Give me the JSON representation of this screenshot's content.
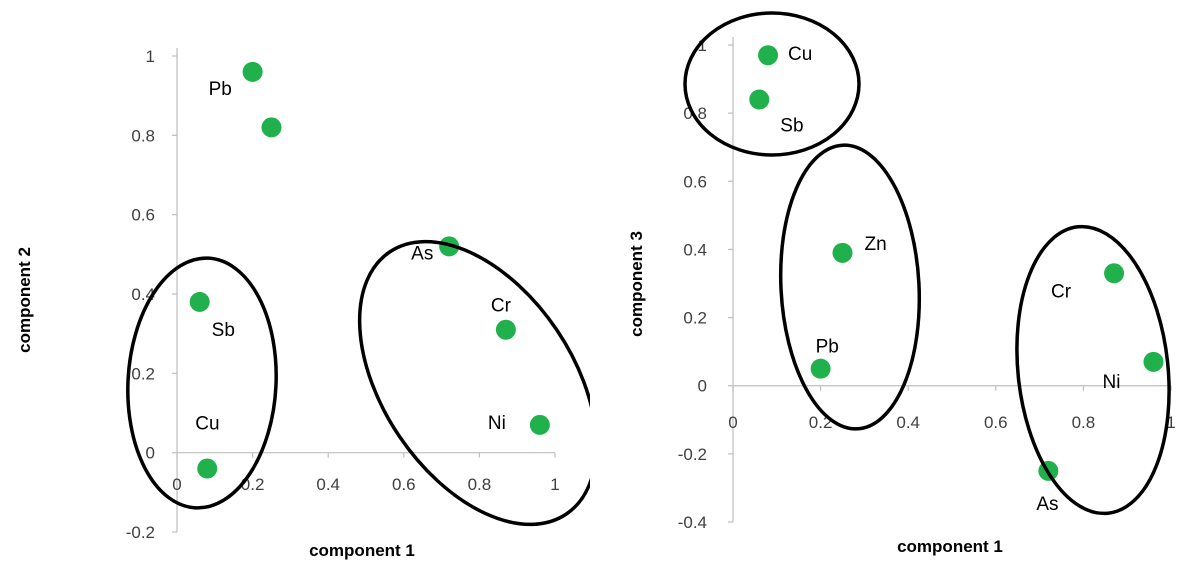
{
  "chart_data": [
    {
      "type": "scatter",
      "xlabel": "component 1",
      "ylabel": "component 2",
      "xlim": [
        0,
        1
      ],
      "ylim": [
        -0.2,
        1
      ],
      "x_ticks": [
        "0",
        "0.2",
        "0.4",
        "0.6",
        "0.8",
        "1"
      ],
      "y_ticks": [
        "-0.2",
        "0",
        "0.2",
        "0.4",
        "0.6",
        "0.8",
        "1"
      ],
      "marker_color": "#21b14c",
      "points": [
        {
          "label": "Pb",
          "x": 0.2,
          "y": 0.96
        },
        {
          "label": "",
          "x": 0.25,
          "y": 0.82
        },
        {
          "label": "As",
          "x": 0.72,
          "y": 0.52
        },
        {
          "label": "Sb",
          "x": 0.06,
          "y": 0.38
        },
        {
          "label": "Cr",
          "x": 0.87,
          "y": 0.31
        },
        {
          "label": "Ni",
          "x": 0.96,
          "y": 0.07
        },
        {
          "label": "Cu",
          "x": 0.08,
          "y": -0.04
        }
      ],
      "clusters": [
        [
          "Sb",
          "Cu"
        ],
        [
          "As",
          "Cr",
          "Ni"
        ]
      ]
    },
    {
      "type": "scatter",
      "xlabel": "component 1",
      "ylabel": "component 3",
      "xlim": [
        0,
        1
      ],
      "ylim": [
        -0.4,
        1
      ],
      "x_ticks": [
        "0",
        "0.2",
        "0.4",
        "0.6",
        "0.8",
        "1"
      ],
      "y_ticks": [
        "-0.4",
        "-0.2",
        "0",
        "0.2",
        "0.4",
        "0.6",
        "0.8",
        "1"
      ],
      "marker_color": "#21b14c",
      "points": [
        {
          "label": "Cu",
          "x": 0.08,
          "y": 0.97
        },
        {
          "label": "Sb",
          "x": 0.06,
          "y": 0.84
        },
        {
          "label": "Zn",
          "x": 0.25,
          "y": 0.39
        },
        {
          "label": "Cr",
          "x": 0.87,
          "y": 0.33
        },
        {
          "label": "Ni",
          "x": 0.96,
          "y": 0.07
        },
        {
          "label": "Pb",
          "x": 0.2,
          "y": 0.05
        },
        {
          "label": "As",
          "x": 0.72,
          "y": -0.25
        }
      ],
      "clusters": [
        [
          "Cu",
          "Sb"
        ],
        [
          "Zn",
          "Pb"
        ],
        [
          "Cr",
          "Ni",
          "As"
        ]
      ]
    }
  ]
}
